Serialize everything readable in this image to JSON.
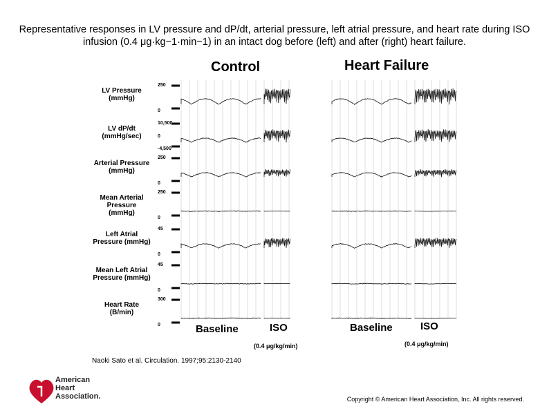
{
  "caption": "Representative responses in LV pressure and dP/dt, arterial pressure, left atrial pressure, and heart rate during ISO infusion (0.4 μg·kg−1·min−1) in an intact dog before (left) and after (right) heart failure.",
  "panels": {
    "control": "Control",
    "heart_failure": "Heart Failure"
  },
  "rows": [
    {
      "label": "LV Pressure\n(mmHg)",
      "ticks": [
        "250",
        "0"
      ]
    },
    {
      "label": "LV dP/dt\n(mmHg/sec)",
      "ticks": [
        "10,500",
        "0",
        "-4,500"
      ]
    },
    {
      "label": "Arterial Pressure\n(mmHg)",
      "ticks": [
        "250",
        "0"
      ]
    },
    {
      "label": "Mean Arterial\nPressure\n(mmHg)",
      "ticks": [
        "250",
        "0"
      ]
    },
    {
      "label": "Left Atrial\nPressure (mmHg)",
      "ticks": [
        "45",
        "0"
      ]
    },
    {
      "label": "Mean Left Atrial\nPressure (mmHg)",
      "ticks": [
        "45",
        "0"
      ]
    },
    {
      "label": "Heart Rate\n(B/min)",
      "ticks": [
        "300",
        "0"
      ]
    }
  ],
  "x_labels": {
    "baseline": "Baseline",
    "iso": "ISO",
    "dose": "(0.4 μg/kg/min)"
  },
  "citation": "Naoki Sato et al. Circulation. 1997;95:2130-2140",
  "logo": {
    "line1": "American",
    "line2": "Heart",
    "line3": "Association."
  },
  "copyright": "Copyright © American Heart Association, Inc. All rights reserved.",
  "colors": {
    "logo_red": "#c8102e",
    "trace": "#111111",
    "grid": "#bbbbbb"
  }
}
